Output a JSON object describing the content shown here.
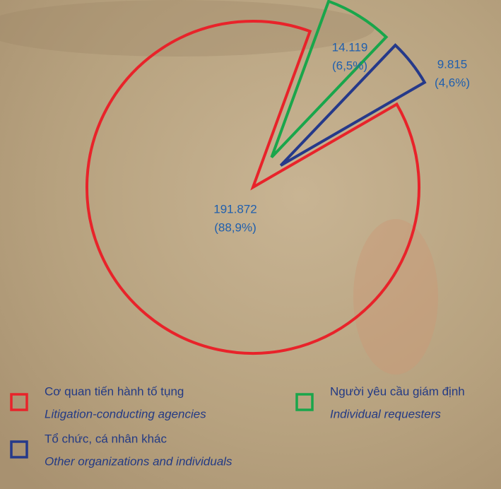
{
  "chart_data": {
    "type": "pie",
    "categories": [
      "Cơ quan tiến hành tố tụng",
      "Người yêu cầu giám định",
      "Tổ chức, cá nhân khác"
    ],
    "categories_en": [
      "Litigation-conducting agencies",
      "Individual requesters",
      "Other organizations and individuals"
    ],
    "values": [
      191872,
      14119,
      9815
    ],
    "value_labels": [
      "191.872",
      "14.119",
      "9.815"
    ],
    "percent": [
      88.9,
      6.5,
      4.6
    ],
    "percent_labels": [
      "(88,9%)",
      "(6,5%)",
      "(4,6%)"
    ],
    "colors": [
      "#e8232a",
      "#19a64b",
      "#25398a"
    ]
  }
}
